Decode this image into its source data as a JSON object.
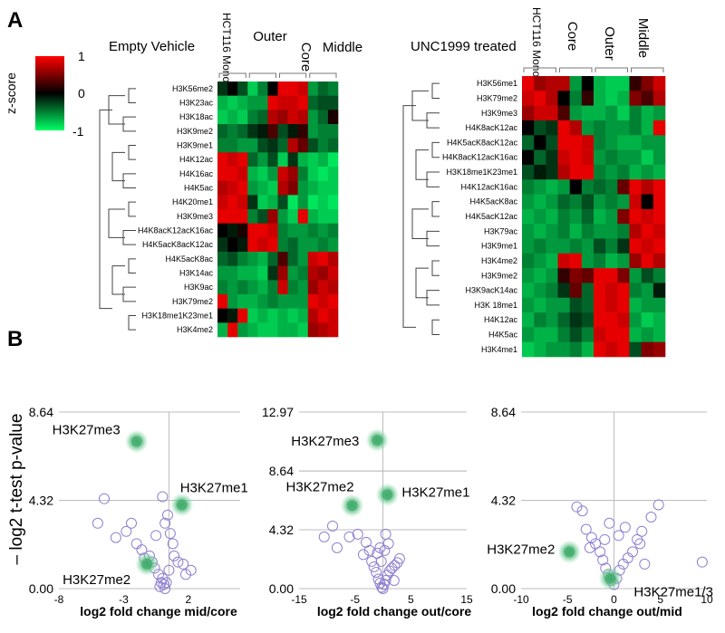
{
  "panel_a_label": "A",
  "panel_b_label": "B",
  "colorbar": {
    "title": "z-score",
    "ticks": [
      "1",
      "0",
      "-1"
    ],
    "colors": {
      "high": "#ff0000",
      "mid": "#000000",
      "low": "#00ff66"
    }
  },
  "chart_data": [
    {
      "type": "heatmap",
      "title": "Empty Vehicle",
      "column_groups": [
        "HCT116 Monolayer",
        "Core",
        "Outer",
        "Middle"
      ],
      "columns_per_group": 3,
      "rows": [
        "H3K56me2",
        "H3K23ac",
        "H3K18ac",
        "H3K9me2",
        "H3K9me1",
        "H4K12ac",
        "H4K16ac",
        "H4K5ac",
        "H4K20me1",
        "H3K9me3",
        "H4K8acK12acK16ac",
        "H4K5acK8acK12ac",
        "H4K5acK8ac",
        "H3K14ac",
        "H3K9ac",
        "H3K79me2",
        "H3K18me1K23me1",
        "H3K4me2"
      ],
      "z": [
        [
          -0.2,
          0.0,
          -0.3,
          -0.8,
          -0.5,
          0.0,
          0.9,
          0.9,
          0.8,
          -0.6,
          -0.4,
          -0.5
        ],
        [
          -0.7,
          -0.8,
          -0.7,
          -0.6,
          -0.6,
          0.9,
          0.8,
          0.8,
          0.9,
          -0.4,
          -0.3,
          -0.3
        ],
        [
          -0.8,
          -0.7,
          -0.8,
          -0.5,
          -0.4,
          0.7,
          0.6,
          0.8,
          0.7,
          -0.6,
          -0.4,
          0.1
        ],
        [
          -0.4,
          -0.5,
          -0.4,
          -0.2,
          -0.1,
          0.3,
          -0.3,
          -0.1,
          0.2,
          -0.6,
          -0.5,
          -0.5
        ],
        [
          -0.5,
          -0.5,
          -0.6,
          -0.6,
          -0.3,
          -0.2,
          -0.4,
          0.7,
          0.4,
          -0.3,
          -0.5,
          -0.4
        ],
        [
          0.9,
          0.8,
          0.9,
          -0.4,
          -0.6,
          -0.3,
          -0.8,
          -0.2,
          -0.7,
          -0.8,
          -0.7,
          -0.9
        ],
        [
          0.9,
          0.9,
          0.8,
          -0.7,
          -0.8,
          -0.6,
          0.8,
          0.6,
          -0.5,
          -0.8,
          -0.9,
          -0.8
        ],
        [
          0.7,
          0.8,
          0.9,
          -0.6,
          -0.7,
          -0.8,
          0.7,
          0.5,
          -0.6,
          -0.7,
          -0.8,
          -0.8
        ],
        [
          0.8,
          0.9,
          0.8,
          -0.2,
          -0.8,
          -0.7,
          -0.3,
          -0.9,
          -0.6,
          -0.9,
          -0.8,
          -0.9
        ],
        [
          0.9,
          0.9,
          0.9,
          -0.5,
          -0.3,
          0.6,
          -0.6,
          -0.8,
          0.9,
          -0.7,
          -0.8,
          -0.8
        ],
        [
          0.0,
          -0.1,
          0.1,
          0.9,
          0.9,
          0.8,
          -0.5,
          -0.6,
          -0.6,
          -0.5,
          -0.6,
          -0.5
        ],
        [
          -0.2,
          0.0,
          -0.1,
          0.9,
          0.8,
          0.9,
          -0.5,
          -0.4,
          -0.6,
          -0.6,
          -0.5,
          -0.6
        ],
        [
          -0.4,
          -0.3,
          -0.5,
          -0.6,
          -0.7,
          -0.4,
          0.3,
          -0.4,
          -0.6,
          0.8,
          0.9,
          0.7
        ],
        [
          -0.6,
          -0.6,
          -0.7,
          -0.7,
          -0.8,
          -0.2,
          0.6,
          -0.6,
          -0.5,
          0.7,
          0.6,
          0.8
        ],
        [
          -0.5,
          -0.6,
          -0.5,
          -0.6,
          -0.7,
          -0.5,
          0.8,
          -0.5,
          -0.6,
          0.6,
          0.8,
          0.7
        ],
        [
          0.9,
          -0.6,
          -0.7,
          -0.7,
          -0.6,
          -0.5,
          -0.6,
          -0.6,
          -0.6,
          0.9,
          0.8,
          0.9
        ],
        [
          0.0,
          -0.1,
          0.9,
          -0.8,
          -0.7,
          -0.8,
          -0.7,
          -0.8,
          -0.7,
          0.7,
          0.9,
          0.8
        ],
        [
          -0.7,
          0.9,
          -0.6,
          -0.7,
          -0.8,
          -0.8,
          -0.7,
          -0.7,
          -0.8,
          0.6,
          0.7,
          0.8
        ]
      ]
    },
    {
      "type": "heatmap",
      "title": "UNC1999 treated",
      "column_groups": [
        "HCT116 Monolayer",
        "Core",
        "Outer",
        "Middle"
      ],
      "columns_per_group": 3,
      "rows": [
        "H3K56me1",
        "H3K79me2",
        "H3K9me3",
        "H4K8acK12ac",
        "H4K5acK8acK12ac",
        "H4K8acK12acK16ac",
        "H3K18me1K23me1",
        "H4K12acK16ac",
        "H4K5acK8ac",
        "H4K5acK12ac",
        "H3K79ac",
        "H3K9me1",
        "H3K4me2",
        "H3K9me2",
        "H3K9acK14ac",
        "H3K 18me1",
        "H4K12ac",
        "H4K5ac",
        "H3K4me1"
      ],
      "z": [
        [
          0.9,
          0.6,
          0.7,
          0.7,
          -0.6,
          0.0,
          -0.7,
          -0.8,
          -0.8,
          0.2,
          0.5,
          0.8
        ],
        [
          0.8,
          0.9,
          0.7,
          0.0,
          -0.5,
          0.2,
          -0.7,
          -0.8,
          -0.7,
          0.5,
          0.3,
          0.7
        ],
        [
          0.6,
          0.8,
          0.8,
          0.3,
          -0.6,
          -0.7,
          -0.7,
          -0.6,
          -0.8,
          -0.5,
          -0.7,
          -0.6
        ],
        [
          0.0,
          -0.3,
          -0.2,
          0.9,
          0.7,
          -0.6,
          -0.5,
          -0.6,
          -0.6,
          -0.5,
          -0.7,
          0.9
        ],
        [
          -0.4,
          0.0,
          -0.3,
          0.9,
          0.9,
          0.8,
          -0.5,
          -0.6,
          -0.7,
          -0.7,
          -0.6,
          -0.6
        ],
        [
          0.0,
          -0.4,
          -0.2,
          0.8,
          0.9,
          0.8,
          -0.6,
          -0.5,
          -0.6,
          -0.6,
          -0.8,
          -0.6
        ],
        [
          -0.3,
          -0.1,
          -0.2,
          0.7,
          0.9,
          0.9,
          -0.5,
          -0.6,
          -0.5,
          -0.7,
          -0.6,
          -0.7
        ],
        [
          -0.5,
          -0.6,
          -0.7,
          -0.6,
          0.0,
          -0.5,
          -0.4,
          -0.5,
          0.4,
          0.9,
          0.7,
          0.9
        ],
        [
          -0.6,
          -0.7,
          -0.6,
          -0.4,
          -0.5,
          -0.3,
          -0.6,
          -0.5,
          -0.6,
          0.8,
          0.0,
          0.9
        ],
        [
          -0.7,
          -0.6,
          -0.7,
          -0.5,
          -0.6,
          -0.4,
          -0.7,
          -0.6,
          0.5,
          0.9,
          0.8,
          0.9
        ],
        [
          -0.6,
          -0.7,
          -0.6,
          -0.5,
          -0.7,
          -0.5,
          -0.6,
          -0.6,
          -0.5,
          0.7,
          0.9,
          0.8
        ],
        [
          -0.6,
          -0.5,
          -0.6,
          -0.6,
          -0.5,
          -0.6,
          -0.3,
          -0.5,
          -0.2,
          0.9,
          0.8,
          0.9
        ],
        [
          -0.5,
          -0.6,
          -0.7,
          0.8,
          0.9,
          -0.6,
          -0.5,
          -0.7,
          -0.6,
          0.6,
          0.9,
          0.7
        ],
        [
          -0.6,
          -0.7,
          -0.6,
          0.2,
          0.5,
          0.4,
          0.9,
          0.9,
          0.5,
          -0.6,
          -0.3,
          -0.5
        ],
        [
          -0.7,
          -0.6,
          -0.5,
          -0.2,
          0.4,
          -0.4,
          0.9,
          0.8,
          0.9,
          -0.5,
          -0.6,
          -0.1
        ],
        [
          -0.6,
          -0.7,
          -0.6,
          -0.6,
          -0.3,
          -0.4,
          0.9,
          0.8,
          0.9,
          -0.7,
          -0.6,
          -0.6
        ],
        [
          -0.7,
          -0.5,
          -0.6,
          -0.4,
          -0.2,
          -0.3,
          0.9,
          0.9,
          0.8,
          -0.6,
          -0.8,
          -0.7
        ],
        [
          -0.6,
          -0.7,
          -0.7,
          -0.5,
          -0.3,
          -0.5,
          0.8,
          0.9,
          0.9,
          -0.7,
          -0.6,
          -0.7
        ],
        [
          -0.8,
          -0.7,
          -0.6,
          -0.6,
          -0.5,
          -0.7,
          0.9,
          0.8,
          0.9,
          -0.3,
          0.5,
          0.6
        ]
      ]
    },
    {
      "type": "scatter",
      "xlabel": "log2 fold change mid/core",
      "ylabel": "– log2 t-test p-value",
      "xlim": [
        -8,
        6
      ],
      "ylim": [
        0,
        8.64
      ],
      "xticks": [
        -8,
        -3,
        2
      ],
      "yticks": [
        0.0,
        4.32,
        8.64
      ],
      "ytick_labels": [
        "0.00",
        "4.32",
        "8.64"
      ],
      "highlighted": [
        {
          "label": "H3K27me3",
          "x": -2.0,
          "y": 7.2
        },
        {
          "label": "H3K27me1",
          "x": 1.5,
          "y": 4.1
        },
        {
          "label": "H3K27me2",
          "x": -1.2,
          "y": 1.2
        }
      ],
      "points": [
        [
          -4.5,
          4.4
        ],
        [
          -5.0,
          3.2
        ],
        [
          -3.6,
          2.5
        ],
        [
          -2.8,
          2.8
        ],
        [
          -2.4,
          3.2
        ],
        [
          -2.0,
          2.2
        ],
        [
          -1.6,
          1.9
        ],
        [
          -1.4,
          1.5
        ],
        [
          -1.0,
          1.6
        ],
        [
          -0.8,
          1.3
        ],
        [
          -0.6,
          1.0
        ],
        [
          -0.3,
          0.7
        ],
        [
          -0.1,
          0.3
        ],
        [
          0.0,
          0.5
        ],
        [
          0.1,
          0.2
        ],
        [
          0.2,
          0.0
        ],
        [
          -0.2,
          0.1
        ],
        [
          0.3,
          0.3
        ],
        [
          0.5,
          0.9
        ],
        [
          0.0,
          4.5
        ],
        [
          0.4,
          3.6
        ],
        [
          0.2,
          3.2
        ],
        [
          0.6,
          2.7
        ],
        [
          0.8,
          2.2
        ],
        [
          -0.5,
          2.6
        ],
        [
          0.9,
          1.6
        ],
        [
          1.6,
          1.2
        ],
        [
          2.2,
          0.9
        ],
        [
          1.2,
          1.3
        ],
        [
          1.8,
          0.7
        ]
      ]
    },
    {
      "type": "scatter",
      "xlabel": "log2 fold change out/core",
      "ylim": [
        0,
        12.97
      ],
      "xlim": [
        -15,
        15
      ],
      "xticks": [
        -15,
        -5,
        5,
        15
      ],
      "yticks": [
        0.0,
        4.32,
        8.64,
        12.97
      ],
      "ytick_labels": [
        "0.00",
        "4.32",
        "8.64",
        "12.97"
      ],
      "highlighted": [
        {
          "label": "H3K27me3",
          "x": -1.0,
          "y": 10.9
        },
        {
          "label": "H3K27me2",
          "x": -5.5,
          "y": 6.1
        },
        {
          "label": "H3K27me1",
          "x": 0.8,
          "y": 6.9
        }
      ],
      "points": [
        [
          -10.5,
          3.8
        ],
        [
          -9.0,
          4.6
        ],
        [
          -8.2,
          3.0
        ],
        [
          -6.0,
          3.8
        ],
        [
          -4.5,
          4.0
        ],
        [
          -3.5,
          2.5
        ],
        [
          -3.0,
          3.4
        ],
        [
          -2.4,
          2.8
        ],
        [
          -2.0,
          2.0
        ],
        [
          -1.6,
          1.6
        ],
        [
          -1.2,
          1.2
        ],
        [
          -0.8,
          0.7
        ],
        [
          -0.5,
          0.4
        ],
        [
          -0.2,
          0.1
        ],
        [
          0.0,
          0.0
        ],
        [
          0.2,
          0.3
        ],
        [
          0.5,
          0.6
        ],
        [
          0.8,
          1.0
        ],
        [
          1.2,
          1.3
        ],
        [
          1.6,
          1.5
        ],
        [
          2.1,
          1.7
        ],
        [
          2.6,
          1.9
        ],
        [
          3.0,
          2.2
        ],
        [
          2.0,
          0.6
        ],
        [
          -1.0,
          2.6
        ],
        [
          -0.5,
          3.0
        ],
        [
          0.3,
          2.8
        ],
        [
          0.5,
          4.0
        ],
        [
          1.0,
          3.3
        ],
        [
          -0.3,
          2.0
        ]
      ]
    },
    {
      "type": "scatter",
      "xlabel": "log2 fold change out/mid",
      "xlim": [
        -10,
        10
      ],
      "ylim": [
        0,
        8.64
      ],
      "xticks": [
        -10,
        -5,
        0,
        5,
        10
      ],
      "yticks": [
        0.0,
        4.32,
        8.64
      ],
      "ytick_labels": [
        "0.00",
        "4.32",
        "8.64"
      ],
      "highlighted": [
        {
          "label": "H3K27me2",
          "x": -4.8,
          "y": 1.8
        },
        {
          "label": "H3K27me1/3",
          "x": -0.4,
          "y": 0.5
        }
      ],
      "points": [
        [
          -4.0,
          4.0
        ],
        [
          -3.4,
          3.8
        ],
        [
          -3.0,
          2.9
        ],
        [
          -2.4,
          2.5
        ],
        [
          -2.0,
          2.2
        ],
        [
          -1.5,
          1.8
        ],
        [
          -1.2,
          1.4
        ],
        [
          -0.9,
          1.0
        ],
        [
          -0.6,
          0.7
        ],
        [
          -0.3,
          0.4
        ],
        [
          0.0,
          0.2
        ],
        [
          0.3,
          0.5
        ],
        [
          0.6,
          0.9
        ],
        [
          1.0,
          1.2
        ],
        [
          1.5,
          1.5
        ],
        [
          2.0,
          1.8
        ],
        [
          2.5,
          2.4
        ],
        [
          3.0,
          2.8
        ],
        [
          4.0,
          3.5
        ],
        [
          4.8,
          4.1
        ],
        [
          3.3,
          1.2
        ],
        [
          9.5,
          1.3
        ],
        [
          -1.0,
          2.4
        ],
        [
          1.2,
          3.0
        ],
        [
          0.5,
          2.6
        ],
        [
          -0.5,
          3.2
        ],
        [
          2.8,
          2.2
        ],
        [
          -2.6,
          2.0
        ]
      ]
    }
  ]
}
